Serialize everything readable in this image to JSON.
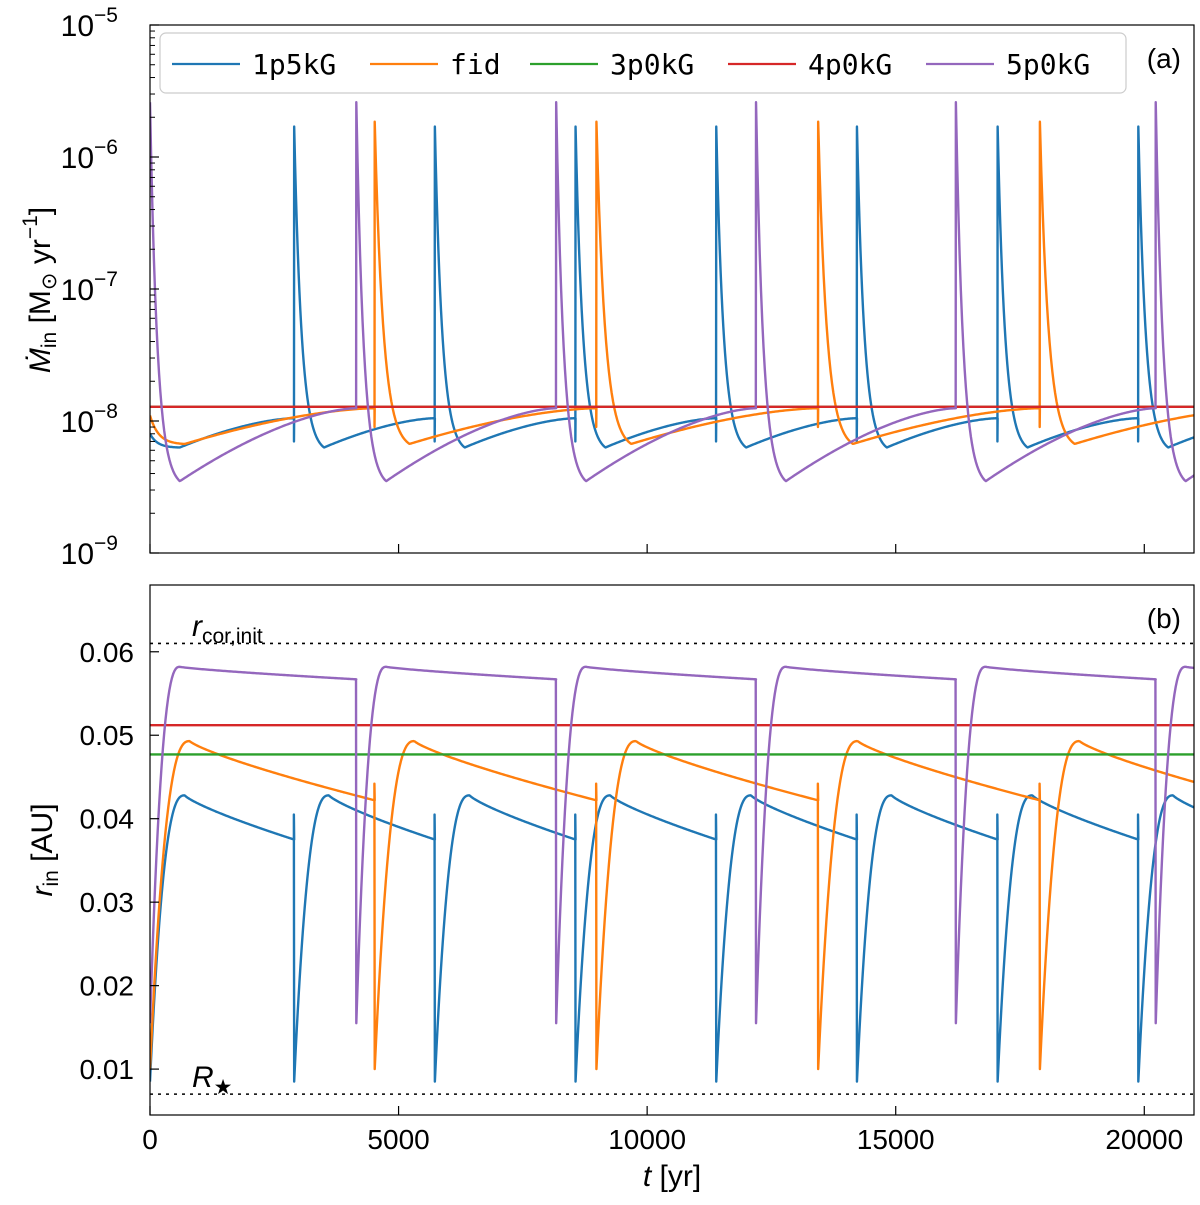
{
  "chart_data": [
    {
      "type": "line",
      "panel_label": "(a)",
      "xlabel": "t [yr]",
      "ylabel": "Ṁin [M⊙ yr⁻¹]",
      "yscale": "log",
      "xlim": [
        0,
        21000
      ],
      "ylim": [
        1e-09,
        1e-05
      ],
      "x_ticks": [
        0,
        5000,
        10000,
        15000,
        20000
      ],
      "y_tick_labels": [
        {
          "value": 1e-09,
          "base": "10",
          "exp": "−9"
        },
        {
          "value": 1e-08,
          "base": "10",
          "exp": "−8"
        },
        {
          "value": 1e-07,
          "base": "10",
          "exp": "−7"
        },
        {
          "value": 1e-06,
          "base": "10",
          "exp": "−6"
        },
        {
          "value": 1e-05,
          "base": "10",
          "exp": "−5"
        }
      ],
      "legend": [
        "1p5kG",
        "fid",
        "3p0kG",
        "4p0kG",
        "5p0kG"
      ],
      "series": [
        {
          "name": "1p5kG",
          "color": "#1f77b4",
          "kind": "mdot",
          "period": 2830,
          "first": 2900,
          "min": 6.3e-09,
          "tmin": 600,
          "end": 1.05e-08,
          "peak": 1.7e-06,
          "trough": 7e-09,
          "init": 8e-09
        },
        {
          "name": "fid",
          "color": "#ff7f0e",
          "kind": "mdot",
          "period": 4460,
          "first": 4520,
          "min": 6.7e-09,
          "tmin": 700,
          "end": 1.25e-08,
          "peak": 1.85e-06,
          "trough": 9e-09,
          "init": 1.1e-08
        },
        {
          "name": "3p0kG",
          "color": "#2ca02c",
          "kind": "const",
          "value": 1.28e-08
        },
        {
          "name": "4p0kG",
          "color": "#d62728",
          "kind": "const",
          "value": 1.28e-08
        },
        {
          "name": "5p0kG",
          "color": "#9467bd",
          "kind": "mdot",
          "period": 4020,
          "first": 4150,
          "min": 3.5e-09,
          "tmin": 600,
          "end": 1.25e-08,
          "peak": 2.6e-06,
          "trough": 1.25e-08,
          "init": 2.6e-06
        }
      ]
    },
    {
      "type": "line",
      "panel_label": "(b)",
      "xlabel": "t [yr]",
      "ylabel": "rin [AU]",
      "xlim": [
        0,
        21000
      ],
      "ylim": [
        0.0045,
        0.068
      ],
      "x_ticks": [
        0,
        5000,
        10000,
        15000,
        20000
      ],
      "x_tick_labels": [
        "0",
        "5000",
        "10000",
        "15000",
        "20000"
      ],
      "y_ticks": [
        0.01,
        0.02,
        0.03,
        0.04,
        0.05,
        0.06
      ],
      "y_tick_labels": [
        "0.01",
        "0.02",
        "0.03",
        "0.04",
        "0.05",
        "0.06"
      ],
      "reference_lines": [
        {
          "label": "rcor,init",
          "value": 0.061
        },
        {
          "label": "R★",
          "value": 0.007
        }
      ],
      "series": [
        {
          "name": "1p5kG",
          "color": "#1f77b4",
          "kind": "rin",
          "period": 2830,
          "first": 2900,
          "rise_from": 0.0085,
          "rmax": 0.0428,
          "tmax": 700,
          "end": 0.0375,
          "spike": 0.0405,
          "low": 0.0085
        },
        {
          "name": "fid",
          "color": "#ff7f0e",
          "kind": "rin",
          "period": 4460,
          "first": 4520,
          "rise_from": 0.01,
          "rmax": 0.0493,
          "tmax": 800,
          "end": 0.0422,
          "spike": 0.0442,
          "low": 0.01
        },
        {
          "name": "3p0kG",
          "color": "#2ca02c",
          "kind": "const",
          "value": 0.0477
        },
        {
          "name": "4p0kG",
          "color": "#d62728",
          "kind": "const",
          "value": 0.0512
        },
        {
          "name": "5p0kG",
          "color": "#9467bd",
          "kind": "rin",
          "period": 4020,
          "first": 4150,
          "rise_from": 0.0155,
          "rmax": 0.0582,
          "tmax": 600,
          "end": 0.0567,
          "spike": 0.0567,
          "low": 0.0155
        }
      ]
    }
  ]
}
